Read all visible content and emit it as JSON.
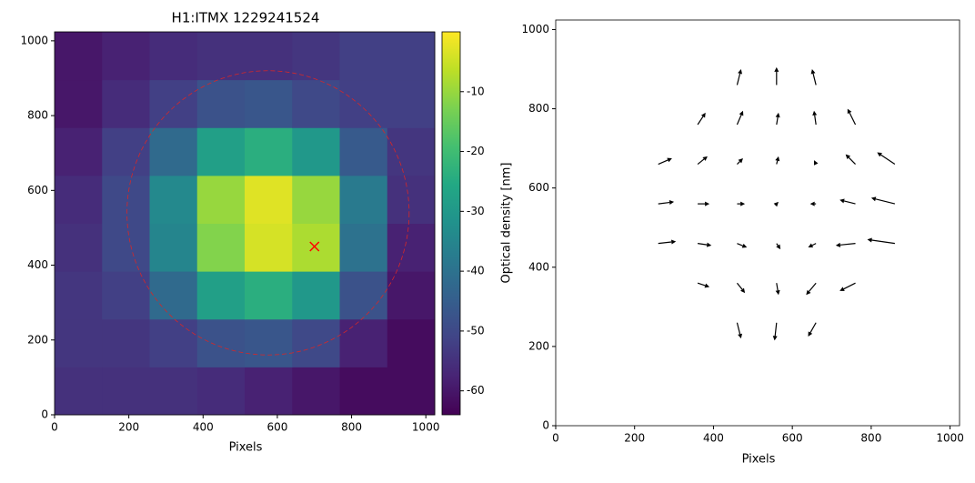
{
  "chart_data": [
    {
      "type": "heatmap",
      "title": "H1:ITMX 1229241524",
      "xlabel": "Pixels",
      "colorbar_label": "Optical density [nm]",
      "colormap": "viridis",
      "clim": [
        -64,
        0
      ],
      "colorbar_ticks": [
        -10,
        -20,
        -30,
        -40,
        -50,
        -60
      ],
      "xlim": [
        0,
        1024
      ],
      "ylim": [
        0,
        1024
      ],
      "xticks": [
        0,
        200,
        400,
        600,
        800,
        1000
      ],
      "yticks": [
        0,
        200,
        400,
        600,
        800,
        1000
      ],
      "z": [
        [
          -55,
          -55,
          -55,
          -56,
          -58,
          -60,
          -62,
          -62
        ],
        [
          -54,
          -54,
          -52,
          -48,
          -47,
          -50,
          -58,
          -62
        ],
        [
          -54,
          -52,
          -42,
          -28,
          -24,
          -30,
          -48,
          -60
        ],
        [
          -55,
          -50,
          -35,
          -12,
          -4,
          -8,
          -40,
          -58
        ],
        [
          -56,
          -50,
          -34,
          -10,
          -3,
          -10,
          -38,
          -55
        ],
        [
          -58,
          -52,
          -42,
          -28,
          -24,
          -30,
          -46,
          -54
        ],
        [
          -60,
          -56,
          -52,
          -48,
          -47,
          -50,
          -52,
          -52
        ],
        [
          -60,
          -58,
          -56,
          -55,
          -55,
          -54,
          -52,
          -52
        ]
      ],
      "marker": {
        "x": 700,
        "y": 450,
        "color": "#ff0000"
      },
      "circle": {
        "x": 575,
        "y": 540,
        "r": 380,
        "color": "#d62728"
      }
    },
    {
      "type": "quiver",
      "xlabel": "Pixels",
      "color": "#000000",
      "xlim": [
        0,
        1024
      ],
      "ylim": [
        0,
        1024
      ],
      "xticks": [
        0,
        200,
        400,
        600,
        800,
        1000
      ],
      "yticks": [
        0,
        200,
        400,
        600,
        800,
        1000
      ],
      "x": [
        460,
        560,
        660,
        360,
        460,
        560,
        660,
        760,
        260,
        360,
        460,
        560,
        660,
        760,
        860,
        260,
        360,
        460,
        560,
        660,
        760,
        860,
        260,
        360,
        460,
        560,
        660,
        760,
        860,
        360,
        460,
        560,
        660,
        760,
        460,
        560,
        660
      ],
      "y": [
        260,
        260,
        260,
        360,
        360,
        360,
        360,
        360,
        460,
        460,
        460,
        460,
        460,
        460,
        460,
        560,
        560,
        560,
        560,
        560,
        560,
        560,
        660,
        660,
        660,
        660,
        660,
        660,
        660,
        760,
        760,
        760,
        760,
        760,
        860,
        860,
        860
      ],
      "u": [
        10,
        -5,
        -20,
        30,
        20,
        5,
        -25,
        -40,
        45,
        35,
        25,
        10,
        -20,
        -50,
        -70,
        40,
        30,
        20,
        5,
        -15,
        -40,
        -60,
        35,
        25,
        15,
        5,
        -5,
        -25,
        -45,
        20,
        15,
        5,
        -5,
        -20,
        10,
        0,
        -10
      ],
      "v": [
        -40,
        -45,
        -35,
        -10,
        -25,
        -30,
        -30,
        -20,
        5,
        -5,
        -10,
        -15,
        -10,
        -5,
        10,
        5,
        0,
        0,
        5,
        0,
        10,
        15,
        15,
        20,
        15,
        20,
        10,
        25,
        30,
        30,
        35,
        30,
        35,
        40,
        40,
        45,
        40
      ]
    }
  ]
}
